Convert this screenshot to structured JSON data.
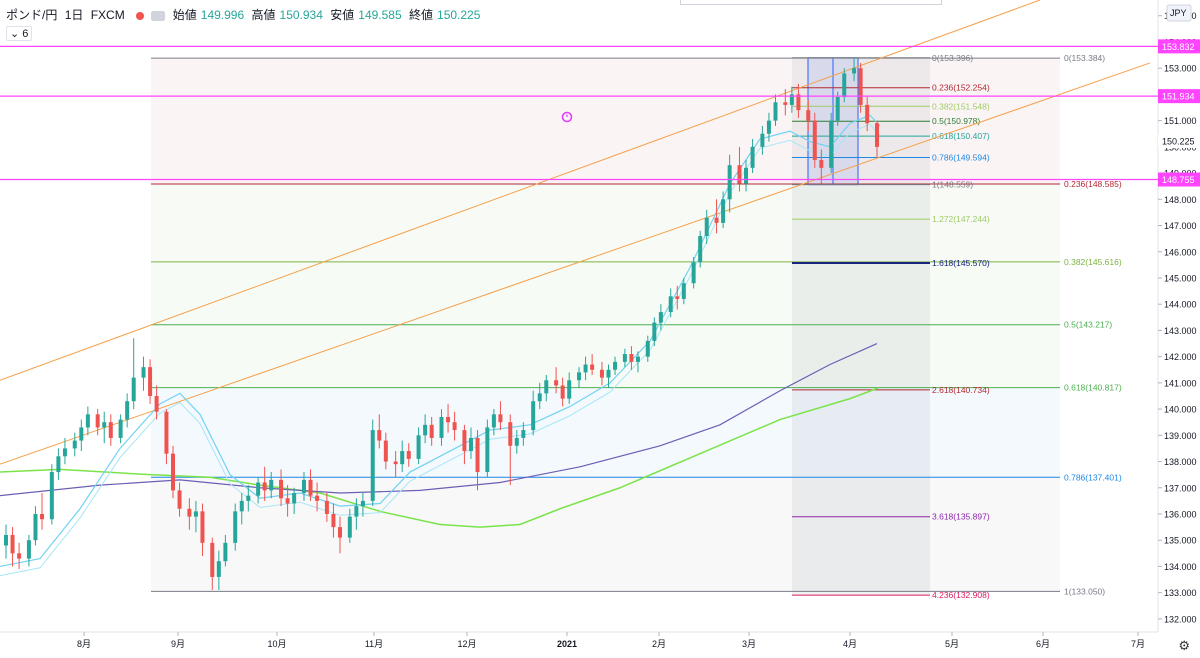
{
  "header": {
    "symbol": "ポンド/円",
    "interval": "1日",
    "source": "FXCM",
    "ohlc": [
      {
        "label": "始値",
        "value": "149.996"
      },
      {
        "label": "高値",
        "value": "150.934"
      },
      {
        "label": "安値",
        "value": "149.585"
      },
      {
        "label": "終値",
        "value": "150.225"
      }
    ],
    "indicator_badge": "6"
  },
  "axis": {
    "currency": "JPY"
  },
  "colors": {
    "up": "#26a69a",
    "down": "#ef5350",
    "magenta": "#ff44ff",
    "orange": "#f5a04a",
    "ma_fast": "#6fd3f2",
    "ma_slow": "#6b5fb5",
    "ma_green": "#7be34a"
  },
  "chart_data": {
    "type": "candlestick",
    "instrument": "GBP/JPY",
    "x_labels": [
      "8月",
      "9月",
      "10月",
      "11月",
      "12月",
      "2021",
      "2月",
      "3月",
      "4月",
      "5月",
      "6月",
      "7月"
    ],
    "y_ticks": [
      "155.000",
      "154.000",
      "153.000",
      "152.000",
      "151.000",
      "150.000",
      "149.000",
      "148.000",
      "147.000",
      "146.000",
      "145.000",
      "144.000",
      "143.000",
      "142.000",
      "141.000",
      "140.000",
      "139.000",
      "138.000",
      "137.000",
      "136.000",
      "135.000",
      "134.000",
      "133.000",
      "132.000"
    ],
    "ylim": [
      131.5,
      155.6
    ],
    "last_price": "150.225",
    "horizontal_levels": [
      {
        "value": 153.832,
        "label": "153.832"
      },
      {
        "value": 151.934,
        "label": "151.934"
      },
      {
        "value": 148.755,
        "label": "148.755"
      }
    ],
    "fib_retracement_big": [
      {
        "ratio": "0",
        "value": 153.384,
        "label": "0(153.384)",
        "color": "#787b86"
      },
      {
        "ratio": "0.236",
        "value": 148.585,
        "label": "0.236(148.585)",
        "color": "#b22833"
      },
      {
        "ratio": "0.382",
        "value": 145.616,
        "label": "0.382(145.616)",
        "color": "#7cb342"
      },
      {
        "ratio": "0.5",
        "value": 143.217,
        "label": "0.5(143.217)",
        "color": "#4caf50"
      },
      {
        "ratio": "0.618",
        "value": 140.817,
        "label": "0.618(140.817)",
        "color": "#4caf50"
      },
      {
        "ratio": "0.786",
        "value": 137.401,
        "label": "0.786(137.401)",
        "color": "#1e88e5"
      },
      {
        "ratio": "1",
        "value": 133.05,
        "label": "1(133.050)",
        "color": "#787b86"
      }
    ],
    "fib_retracement_small": [
      {
        "ratio": "0",
        "value": 153.396,
        "label": "0(153.396)",
        "color": "#787b86"
      },
      {
        "ratio": "0.236",
        "value": 152.254,
        "label": "0.236(152.254)",
        "color": "#b22833"
      },
      {
        "ratio": "0.382",
        "value": 151.548,
        "label": "0.382(151.548)",
        "color": "#9ccc65"
      },
      {
        "ratio": "0.5",
        "value": 150.978,
        "label": "0.5(150.978)",
        "color": "#2e7d32"
      },
      {
        "ratio": "0.618",
        "value": 150.407,
        "label": "0.618(150.407)",
        "color": "#26a69a"
      },
      {
        "ratio": "0.786",
        "value": 149.594,
        "label": "0.786(149.594)",
        "color": "#1e88e5"
      },
      {
        "ratio": "1",
        "value": 148.559,
        "label": "1(148.559)",
        "color": "#787b86"
      },
      {
        "ratio": "1.272",
        "value": 147.244,
        "label": "1.272(147.244)",
        "color": "#9ccc65"
      },
      {
        "ratio": "1.618",
        "value": 145.57,
        "label": "1.618(145.570)",
        "color": "#1a237e"
      },
      {
        "ratio": "2.618",
        "value": 140.734,
        "label": "2.618(140.734)",
        "color": "#b22833"
      },
      {
        "ratio": "3.618",
        "value": 135.897,
        "label": "3.618(135.897)",
        "color": "#8e24aa"
      },
      {
        "ratio": "4.236",
        "value": 132.908,
        "label": "4.236(132.908)",
        "color": "#d81b60"
      }
    ],
    "ohlc_path": [
      [
        "2020-07-20",
        134.8,
        135.6,
        134.3,
        135.2
      ],
      [
        "2020-07-22",
        135.2,
        135.5,
        134.0,
        134.5
      ],
      [
        "2020-07-24",
        134.5,
        134.9,
        133.9,
        134.3
      ],
      [
        "2020-07-27",
        134.3,
        135.2,
        134.0,
        135.0
      ],
      [
        "2020-07-29",
        135.0,
        136.3,
        134.8,
        136.0
      ],
      [
        "2020-07-31",
        136.0,
        136.8,
        135.4,
        135.8
      ],
      [
        "2020-08-03",
        135.8,
        137.9,
        135.6,
        137.6
      ],
      [
        "2020-08-05",
        137.6,
        138.5,
        137.3,
        138.2
      ],
      [
        "2020-08-07",
        138.2,
        138.9,
        137.9,
        138.5
      ],
      [
        "2020-08-10",
        138.5,
        139.1,
        138.2,
        138.8
      ],
      [
        "2020-08-12",
        138.8,
        139.6,
        138.4,
        139.3
      ],
      [
        "2020-08-14",
        139.3,
        140.1,
        139.0,
        139.8
      ],
      [
        "2020-08-17",
        139.8,
        140.0,
        139.0,
        139.3
      ],
      [
        "2020-08-19",
        139.3,
        139.9,
        138.7,
        139.5
      ],
      [
        "2020-08-21",
        139.5,
        139.8,
        138.6,
        138.9
      ],
      [
        "2020-08-24",
        138.9,
        139.8,
        138.7,
        139.6
      ],
      [
        "2020-08-26",
        139.6,
        140.6,
        139.3,
        140.3
      ],
      [
        "2020-08-28",
        140.3,
        142.7,
        140.0,
        141.2
      ],
      [
        "2020-08-31",
        141.2,
        142.0,
        140.7,
        141.6
      ],
      [
        "2020-09-02",
        141.6,
        141.9,
        140.2,
        140.5
      ],
      [
        "2020-09-04",
        140.5,
        140.9,
        139.6,
        139.9
      ],
      [
        "2020-09-07",
        139.9,
        140.0,
        137.9,
        138.3
      ],
      [
        "2020-09-09",
        138.3,
        138.6,
        136.6,
        136.9
      ],
      [
        "2020-09-11",
        136.9,
        137.2,
        135.9,
        136.2
      ],
      [
        "2020-09-14",
        136.2,
        136.6,
        135.4,
        135.9
      ],
      [
        "2020-09-16",
        135.9,
        136.5,
        135.3,
        136.1
      ],
      [
        "2020-09-18",
        136.1,
        136.4,
        134.4,
        134.9
      ],
      [
        "2020-09-21",
        134.9,
        135.1,
        133.1,
        133.6
      ],
      [
        "2020-09-23",
        133.6,
        134.6,
        133.1,
        134.2
      ],
      [
        "2020-09-25",
        134.2,
        135.2,
        134.0,
        134.9
      ],
      [
        "2020-09-28",
        134.9,
        136.4,
        134.6,
        136.1
      ],
      [
        "2020-09-30",
        136.1,
        136.8,
        135.6,
        136.5
      ],
      [
        "2020-10-02",
        136.5,
        137.1,
        136.1,
        136.7
      ],
      [
        "2020-10-05",
        136.7,
        137.4,
        136.4,
        137.2
      ],
      [
        "2020-10-07",
        137.2,
        137.8,
        136.5,
        136.9
      ],
      [
        "2020-10-09",
        136.9,
        137.6,
        136.6,
        137.3
      ],
      [
        "2020-10-12",
        137.3,
        137.7,
        136.3,
        136.6
      ],
      [
        "2020-10-14",
        136.6,
        137.1,
        135.9,
        136.4
      ],
      [
        "2020-10-16",
        136.4,
        137.0,
        136.0,
        136.8
      ],
      [
        "2020-10-19",
        136.8,
        137.6,
        136.5,
        137.3
      ],
      [
        "2020-10-21",
        137.3,
        137.7,
        136.5,
        136.7
      ],
      [
        "2020-10-23",
        136.7,
        137.2,
        136.1,
        136.5
      ],
      [
        "2020-10-26",
        136.5,
        136.8,
        135.7,
        136.0
      ],
      [
        "2020-10-28",
        136.0,
        136.4,
        135.1,
        135.5
      ],
      [
        "2020-10-30",
        135.5,
        135.9,
        134.5,
        135.1
      ],
      [
        "2020-11-02",
        135.1,
        136.2,
        134.9,
        135.9
      ],
      [
        "2020-11-04",
        135.9,
        136.6,
        135.4,
        136.3
      ],
      [
        "2020-11-06",
        136.3,
        136.8,
        135.9,
        136.5
      ],
      [
        "2020-11-09",
        136.5,
        139.6,
        136.3,
        139.2
      ],
      [
        "2020-11-11",
        139.2,
        139.8,
        138.5,
        138.8
      ],
      [
        "2020-11-13",
        138.8,
        139.1,
        137.7,
        138.0
      ],
      [
        "2020-11-16",
        138.0,
        138.4,
        137.4,
        137.9
      ],
      [
        "2020-11-18",
        137.9,
        138.8,
        137.6,
        138.4
      ],
      [
        "2020-11-20",
        138.4,
        138.7,
        137.8,
        138.1
      ],
      [
        "2020-11-23",
        138.1,
        139.3,
        137.9,
        139.0
      ],
      [
        "2020-11-25",
        139.0,
        139.8,
        138.7,
        139.4
      ],
      [
        "2020-11-27",
        139.4,
        139.7,
        138.6,
        138.9
      ],
      [
        "2020-11-30",
        138.9,
        140.0,
        138.6,
        139.7
      ],
      [
        "2020-12-02",
        139.7,
        140.2,
        139.1,
        139.5
      ],
      [
        "2020-12-04",
        139.5,
        139.9,
        138.8,
        139.2
      ],
      [
        "2020-12-07",
        139.2,
        139.4,
        137.9,
        138.4
      ],
      [
        "2020-12-09",
        138.4,
        139.3,
        138.1,
        138.9
      ],
      [
        "2020-12-11",
        138.9,
        139.2,
        136.9,
        137.6
      ],
      [
        "2020-12-14",
        137.6,
        139.6,
        137.4,
        139.3
      ],
      [
        "2020-12-16",
        139.3,
        140.0,
        139.0,
        139.8
      ],
      [
        "2020-12-18",
        139.8,
        140.3,
        139.2,
        139.5
      ],
      [
        "2020-12-21",
        139.5,
        139.8,
        137.1,
        138.6
      ],
      [
        "2020-12-23",
        138.6,
        139.2,
        138.3,
        138.9
      ],
      [
        "2020-12-25",
        138.9,
        139.5,
        138.6,
        139.2
      ],
      [
        "2020-12-28",
        139.2,
        140.7,
        139.0,
        140.3
      ],
      [
        "2020-12-30",
        140.3,
        141.0,
        140.0,
        140.6
      ],
      [
        "2021-01-01",
        140.6,
        141.3,
        140.3,
        141.1
      ],
      [
        "2021-01-04",
        141.1,
        141.6,
        140.6,
        140.9
      ],
      [
        "2021-01-06",
        140.9,
        141.2,
        140.1,
        140.4
      ],
      [
        "2021-01-08",
        140.4,
        141.4,
        140.2,
        141.1
      ],
      [
        "2021-01-11",
        141.1,
        141.6,
        140.8,
        141.4
      ],
      [
        "2021-01-13",
        141.4,
        142.0,
        141.1,
        141.7
      ],
      [
        "2021-01-15",
        141.7,
        142.1,
        141.3,
        141.5
      ],
      [
        "2021-01-18",
        141.5,
        141.8,
        140.9,
        141.2
      ],
      [
        "2021-01-20",
        141.2,
        141.7,
        140.8,
        141.5
      ],
      [
        "2021-01-22",
        141.5,
        142.0,
        141.3,
        141.8
      ],
      [
        "2021-01-25",
        141.8,
        142.3,
        141.6,
        142.1
      ],
      [
        "2021-01-27",
        142.1,
        142.4,
        141.5,
        141.8
      ],
      [
        "2021-01-29",
        141.8,
        142.2,
        141.4,
        142.0
      ],
      [
        "2021-02-01",
        142.0,
        142.8,
        141.8,
        142.6
      ],
      [
        "2021-02-03",
        142.6,
        143.5,
        142.4,
        143.3
      ],
      [
        "2021-02-05",
        143.3,
        144.0,
        143.0,
        143.7
      ],
      [
        "2021-02-08",
        143.7,
        144.6,
        143.5,
        144.3
      ],
      [
        "2021-02-10",
        144.3,
        144.7,
        143.8,
        144.2
      ],
      [
        "2021-02-12",
        144.2,
        145.0,
        144.0,
        144.8
      ],
      [
        "2021-02-15",
        144.8,
        145.8,
        144.6,
        145.6
      ],
      [
        "2021-02-17",
        145.6,
        146.8,
        145.4,
        146.6
      ],
      [
        "2021-02-19",
        146.6,
        147.6,
        146.3,
        147.3
      ],
      [
        "2021-02-22",
        147.3,
        148.0,
        146.7,
        147.1
      ],
      [
        "2021-02-24",
        147.1,
        148.3,
        146.9,
        148.0
      ],
      [
        "2021-02-26",
        148.0,
        149.7,
        147.5,
        149.3
      ],
      [
        "2021-03-01",
        149.3,
        150.0,
        148.3,
        148.6
      ],
      [
        "2021-03-03",
        148.6,
        149.5,
        148.3,
        149.2
      ],
      [
        "2021-03-05",
        149.2,
        150.3,
        149.0,
        150.0
      ],
      [
        "2021-03-08",
        150.0,
        150.8,
        149.7,
        150.5
      ],
      [
        "2021-03-10",
        150.5,
        151.3,
        150.2,
        151.0
      ],
      [
        "2021-03-12",
        151.0,
        152.0,
        150.8,
        151.7
      ],
      [
        "2021-03-15",
        151.7,
        152.2,
        151.2,
        151.6
      ],
      [
        "2021-03-17",
        151.6,
        152.3,
        151.3,
        152.0
      ],
      [
        "2021-03-19",
        152.0,
        152.4,
        151.1,
        151.4
      ],
      [
        "2021-03-22",
        151.4,
        151.8,
        150.6,
        151.0
      ],
      [
        "2021-03-24",
        151.0,
        151.3,
        149.2,
        149.5
      ],
      [
        "2021-03-26",
        149.5,
        149.9,
        148.6,
        149.2
      ],
      [
        "2021-03-29",
        149.2,
        151.3,
        149.0,
        151.0
      ],
      [
        "2021-03-31",
        151.0,
        152.1,
        150.8,
        151.9
      ],
      [
        "2021-04-02",
        151.9,
        153.0,
        151.7,
        152.8
      ],
      [
        "2021-04-05",
        152.8,
        153.4,
        152.5,
        153.0
      ],
      [
        "2021-04-07",
        153.0,
        153.2,
        151.3,
        151.6
      ],
      [
        "2021-04-09",
        151.6,
        151.9,
        150.6,
        150.9
      ],
      [
        "2021-04-12",
        150.9,
        151.0,
        149.6,
        150.0
      ]
    ],
    "moving_averages": {
      "fast": [
        [
          0,
          134.0
        ],
        [
          40,
          134.3
        ],
        [
          80,
          136.2
        ],
        [
          120,
          138.5
        ],
        [
          160,
          140.2
        ],
        [
          180,
          140.6
        ],
        [
          200,
          139.8
        ],
        [
          230,
          137.5
        ],
        [
          260,
          136.6
        ],
        [
          300,
          136.8
        ],
        [
          340,
          136.3
        ],
        [
          380,
          136.4
        ],
        [
          410,
          137.6
        ],
        [
          450,
          138.4
        ],
        [
          490,
          139.2
        ],
        [
          530,
          139.4
        ],
        [
          570,
          140.1
        ],
        [
          610,
          141.0
        ],
        [
          650,
          142.6
        ],
        [
          690,
          145.4
        ],
        [
          730,
          148.6
        ],
        [
          760,
          150.3
        ],
        [
          790,
          150.6
        ],
        [
          810,
          150.2
        ],
        [
          830,
          150.0
        ],
        [
          850,
          150.9
        ],
        [
          870,
          151.2
        ],
        [
          880,
          150.8
        ]
      ],
      "slow": [
        [
          0,
          136.7
        ],
        [
          100,
          137.1
        ],
        [
          180,
          137.3
        ],
        [
          260,
          137.0
        ],
        [
          340,
          136.8
        ],
        [
          420,
          136.9
        ],
        [
          500,
          137.2
        ],
        [
          580,
          137.8
        ],
        [
          660,
          138.6
        ],
        [
          720,
          139.4
        ],
        [
          780,
          140.7
        ],
        [
          830,
          141.7
        ],
        [
          877,
          142.5
        ]
      ],
      "green": [
        [
          0,
          137.6
        ],
        [
          60,
          137.7
        ],
        [
          150,
          137.5
        ],
        [
          210,
          137.4
        ],
        [
          260,
          137.1
        ],
        [
          320,
          136.8
        ],
        [
          380,
          136.1
        ],
        [
          440,
          135.6
        ],
        [
          480,
          135.5
        ],
        [
          520,
          135.6
        ],
        [
          560,
          136.2
        ],
        [
          620,
          137.0
        ],
        [
          700,
          138.3
        ],
        [
          780,
          139.6
        ],
        [
          850,
          140.4
        ],
        [
          878,
          140.8
        ]
      ]
    },
    "trend_lines": [
      {
        "from": [
          0,
          141.1
        ],
        "to": [
          1040,
          155.6
        ]
      },
      {
        "from": [
          0,
          137.9
        ],
        "to": [
          1150,
          153.2
        ]
      }
    ]
  }
}
